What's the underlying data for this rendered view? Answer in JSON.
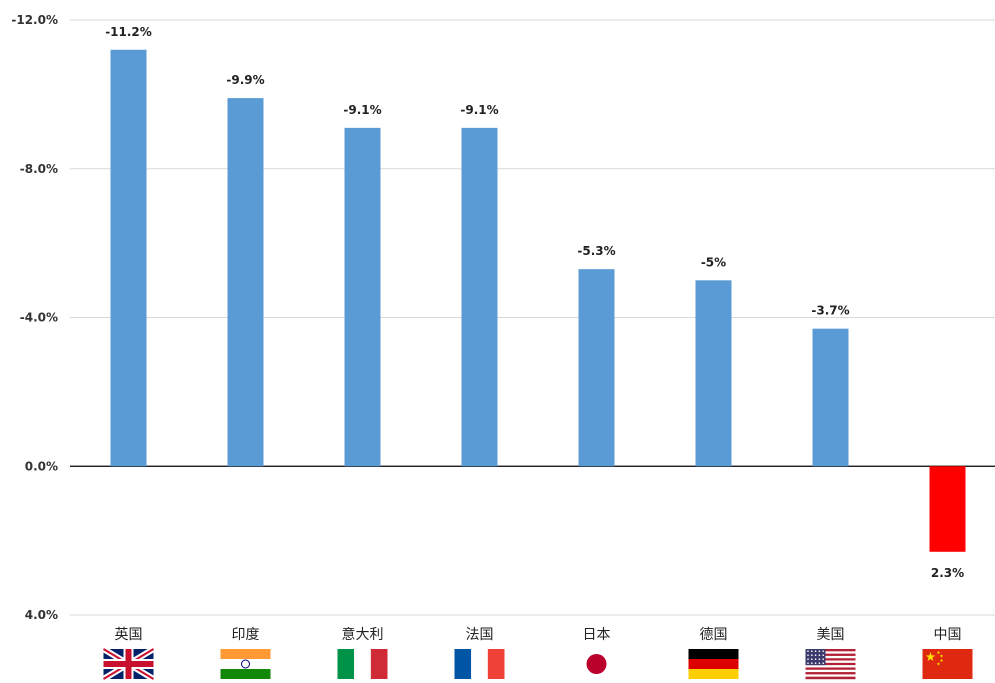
{
  "chart_data": {
    "type": "bar",
    "categories": [
      "英国",
      "印度",
      "意大利",
      "法国",
      "日本",
      "德国",
      "美国",
      "中国"
    ],
    "values": [
      -11.2,
      -9.9,
      -9.1,
      -9.1,
      -5.3,
      -5.0,
      -3.7,
      2.3
    ],
    "data_labels": [
      "-11.2%",
      "-9.9%",
      "-9.1%",
      "-9.1%",
      "-5.3%",
      "-5%",
      "-3.7%",
      "2.3%"
    ],
    "y_ticks": [
      -12,
      -8,
      -4,
      0,
      4
    ],
    "y_tick_labels": [
      "-12.0%",
      "-8.0%",
      "-4.0%",
      "0.0%",
      "4.0%"
    ],
    "ylim": [
      -12,
      4
    ],
    "y_axis_inverted": true,
    "grid": true,
    "legend": "none",
    "flag_icons": [
      "uk-flag-icon",
      "india-flag-icon",
      "italy-flag-icon",
      "france-flag-icon",
      "japan-flag-icon",
      "germany-flag-icon",
      "usa-flag-icon",
      "china-flag-icon"
    ],
    "colors": {
      "negative": "#5b9bd5",
      "positive": "#ff0000",
      "grid": "#d9d9d9",
      "zero_line": "#000000"
    }
  }
}
